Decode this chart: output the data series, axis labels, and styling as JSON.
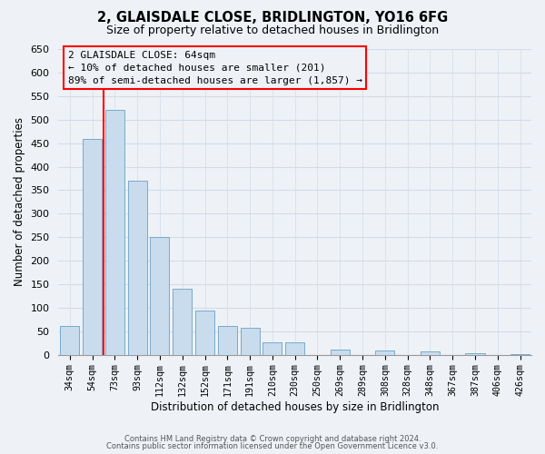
{
  "title": "2, GLAISDALE CLOSE, BRIDLINGTON, YO16 6FG",
  "subtitle": "Size of property relative to detached houses in Bridlington",
  "xlabel": "Distribution of detached houses by size in Bridlington",
  "ylabel": "Number of detached properties",
  "bar_labels": [
    "34sqm",
    "54sqm",
    "73sqm",
    "93sqm",
    "112sqm",
    "132sqm",
    "152sqm",
    "171sqm",
    "191sqm",
    "210sqm",
    "230sqm",
    "250sqm",
    "269sqm",
    "289sqm",
    "308sqm",
    "328sqm",
    "348sqm",
    "367sqm",
    "387sqm",
    "406sqm",
    "426sqm"
  ],
  "bar_values": [
    62,
    458,
    520,
    370,
    250,
    140,
    95,
    62,
    58,
    27,
    27,
    0,
    12,
    0,
    10,
    0,
    8,
    0,
    3,
    0,
    2
  ],
  "bar_color": "#c8dced",
  "bar_edge_color": "#7aaaca",
  "ylim": [
    0,
    650
  ],
  "yticks": [
    0,
    50,
    100,
    150,
    200,
    250,
    300,
    350,
    400,
    450,
    500,
    550,
    600,
    650
  ],
  "red_line_x": 1.5,
  "annotation_line1": "2 GLAISDALE CLOSE: 64sqm",
  "annotation_line2": "← 10% of detached houses are smaller (201)",
  "annotation_line3": "89% of semi-detached houses are larger (1,857) →",
  "footer_line1": "Contains HM Land Registry data © Crown copyright and database right 2024.",
  "footer_line2": "Contains public sector information licensed under the Open Government Licence v3.0.",
  "background_color": "#eef2f7",
  "grid_color": "#d0dce8"
}
